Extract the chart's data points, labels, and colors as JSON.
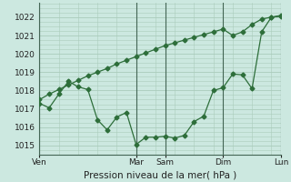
{
  "xlabel": "Pression niveau de la mer( hPa )",
  "background_color": "#cce8e0",
  "grid_color": "#aaccbb",
  "line_color": "#2d6e3a",
  "ylim": [
    1014.5,
    1022.8
  ],
  "yticks": [
    1015,
    1016,
    1017,
    1018,
    1019,
    1020,
    1021,
    1022
  ],
  "xtick_labels": [
    "Ven",
    "Mar",
    "Sam",
    "Dim",
    "Lun"
  ],
  "xtick_positions": [
    0,
    10,
    13,
    19,
    25
  ],
  "total_x": 25,
  "line1_x": [
    0,
    1,
    2,
    3,
    4,
    5,
    6,
    7,
    8,
    9,
    10,
    11,
    12,
    13,
    14,
    15,
    16,
    17,
    18,
    19,
    20,
    21,
    22,
    23,
    24,
    25
  ],
  "line1_y": [
    1017.5,
    1017.8,
    1018.05,
    1018.3,
    1018.55,
    1018.8,
    1019.0,
    1019.2,
    1019.45,
    1019.65,
    1019.85,
    1020.05,
    1020.25,
    1020.45,
    1020.6,
    1020.75,
    1020.9,
    1021.05,
    1021.2,
    1021.35,
    1021.0,
    1021.2,
    1021.6,
    1021.9,
    1022.0,
    1022.1
  ],
  "line2_x": [
    0,
    1,
    2,
    3,
    4,
    5,
    6,
    7,
    8,
    9,
    10,
    11,
    12,
    13,
    14,
    15,
    16,
    17,
    18,
    19,
    20,
    21,
    22,
    23,
    24,
    25
  ],
  "line2_y": [
    1017.3,
    1017.05,
    1017.8,
    1018.5,
    1018.2,
    1018.05,
    1016.4,
    1015.85,
    1016.55,
    1016.8,
    1015.05,
    1015.45,
    1015.45,
    1015.5,
    1015.4,
    1015.55,
    1016.3,
    1016.6,
    1018.0,
    1018.15,
    1018.9,
    1018.85,
    1018.1,
    1021.2,
    1022.0,
    1022.05
  ],
  "vline_positions": [
    0,
    10,
    13,
    19,
    25
  ],
  "marker_size": 2.5
}
